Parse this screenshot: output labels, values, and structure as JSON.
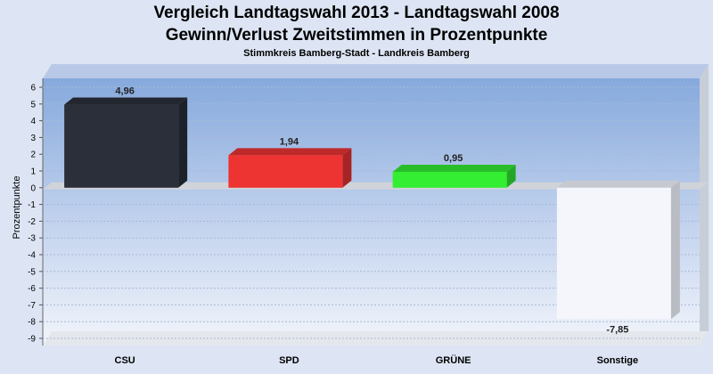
{
  "chart_data": {
    "type": "bar",
    "title": "Vergleich Landtagswahl 2013 - Landtagswahl 2008",
    "subtitle": "Gewinn/Verlust Zweitstimmen in Prozentpunkte",
    "subtitle2": "Stimmkreis Bamberg-Stadt - Landkreis Bamberg",
    "xlabel": "",
    "ylabel": "Prozentpunkte",
    "categories": [
      "CSU",
      "SPD",
      "GRÜNE",
      "Sonstige"
    ],
    "values": [
      4.96,
      1.94,
      0.95,
      -7.85
    ],
    "value_labels": [
      "4,96",
      "1,94",
      "0,95",
      "-7,85"
    ],
    "colors": [
      "#2a2f3a",
      "#ee3333",
      "#33ee33",
      "#f4f6fb"
    ],
    "ylim": [
      -9,
      6
    ],
    "yticks": [
      6,
      5,
      4,
      3,
      2,
      1,
      0,
      -1,
      -2,
      -3,
      -4,
      -5,
      -6,
      -7,
      -8,
      -9
    ],
    "ytick_labels": [
      "6",
      "5",
      "4",
      "3",
      "2",
      "1",
      "0",
      "-1",
      "-2",
      "-3",
      "-4",
      "-5",
      "-6",
      "-7",
      "-8",
      "-9"
    ],
    "grid": true,
    "legend": "none"
  }
}
